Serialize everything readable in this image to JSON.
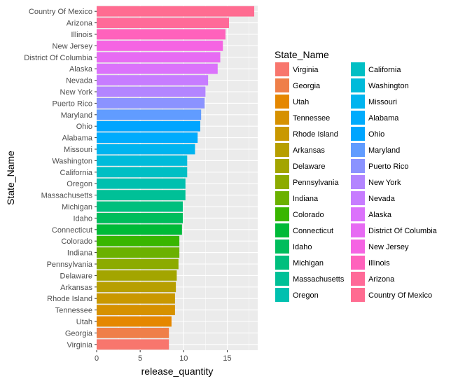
{
  "chart_data": {
    "type": "bar",
    "orientation": "horizontal",
    "xlabel": "release_quantity",
    "ylabel": "State_Name",
    "xlim": [
      0,
      18.5
    ],
    "x_ticks": [
      0,
      5,
      10,
      15
    ],
    "grid": true,
    "legend_title": "State_Name",
    "legend_position": "right",
    "categories": [
      "Virginia",
      "Georgia",
      "Utah",
      "Tennessee",
      "Rhode Island",
      "Arkansas",
      "Delaware",
      "Pennsylvania",
      "Indiana",
      "Colorado",
      "Connecticut",
      "Idaho",
      "Michigan",
      "Massachusetts",
      "Oregon",
      "California",
      "Washington",
      "Missouri",
      "Alabama",
      "Ohio",
      "Maryland",
      "Puerto Rico",
      "New York",
      "Nevada",
      "Alaska",
      "District Of Columbia",
      "New Jersey",
      "Illinois",
      "Arizona",
      "Country Of Mexico"
    ],
    "values": [
      8.3,
      8.3,
      8.6,
      9.0,
      9.0,
      9.1,
      9.2,
      9.4,
      9.5,
      9.5,
      9.8,
      9.9,
      9.9,
      10.2,
      10.2,
      10.4,
      10.4,
      11.3,
      11.6,
      11.9,
      12.0,
      12.4,
      12.5,
      12.8,
      13.9,
      14.2,
      14.5,
      14.8,
      15.2,
      18.1
    ],
    "colors": [
      "#F8766D",
      "#EF7F49",
      "#E58700",
      "#D69100",
      "#C99800",
      "#B79F00",
      "#A3A500",
      "#8CAB00",
      "#6BB100",
      "#39B600",
      "#00BA38",
      "#00BD5C",
      "#00BF7D",
      "#00C097",
      "#00C0AF",
      "#00BFC4",
      "#00BBDA",
      "#00B4EF",
      "#00ABFD",
      "#00A5FF",
      "#619CFF",
      "#8B93FF",
      "#B385FF",
      "#C77CFF",
      "#DB72FB",
      "#E76BF3",
      "#F564E3",
      "#FF62BC",
      "#FF6A98",
      "#FF6C91"
    ]
  }
}
